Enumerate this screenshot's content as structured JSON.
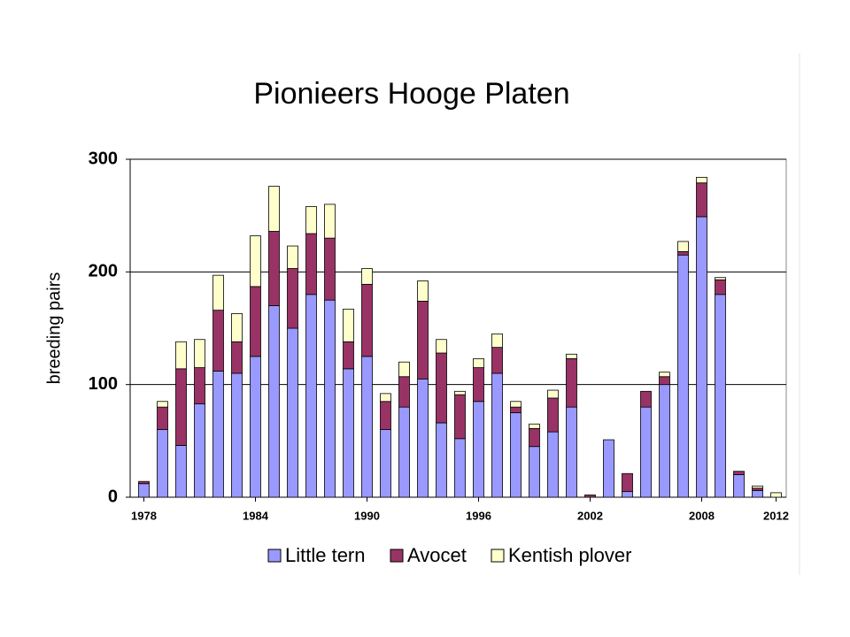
{
  "chart_data": {
    "type": "stacked_bar",
    "title": "Pionieers Hooge Platen",
    "ylabel": "breeding pairs",
    "categories": [
      "1978",
      null,
      null,
      null,
      null,
      null,
      "1984",
      null,
      null,
      null,
      null,
      null,
      "1990",
      null,
      null,
      null,
      null,
      null,
      "1996",
      null,
      null,
      null,
      null,
      null,
      "2002",
      null,
      null,
      null,
      null,
      null,
      "2008",
      null,
      null,
      null,
      "2012"
    ],
    "series": [
      {
        "name": "Little tern",
        "color": "#9999ff",
        "values": [
          12,
          60,
          46,
          83,
          112,
          110,
          125,
          170,
          150,
          180,
          175,
          114,
          125,
          60,
          80,
          105,
          66,
          52,
          85,
          110,
          75,
          45,
          58,
          80,
          0,
          51,
          5,
          80,
          100,
          215,
          249,
          180,
          20,
          6,
          0
        ]
      },
      {
        "name": "Avocet",
        "color": "#993366",
        "values": [
          2,
          20,
          68,
          32,
          54,
          28,
          62,
          66,
          53,
          54,
          55,
          24,
          64,
          25,
          27,
          69,
          62,
          39,
          30,
          23,
          5,
          16,
          30,
          43,
          2,
          0,
          16,
          14,
          7,
          3,
          30,
          13,
          3,
          2,
          0
        ]
      },
      {
        "name": "Kentish plover",
        "color": "#ffffcc",
        "values": [
          0,
          5,
          24,
          25,
          31,
          25,
          45,
          40,
          20,
          24,
          30,
          29,
          14,
          7,
          13,
          18,
          12,
          3,
          8,
          12,
          5,
          4,
          7,
          4,
          0,
          0,
          0,
          0,
          4,
          9,
          5,
          2,
          0,
          2,
          4
        ]
      }
    ],
    "ylim": [
      0,
      300
    ],
    "yticks": [
      0,
      100,
      200,
      300
    ],
    "grid": true
  }
}
